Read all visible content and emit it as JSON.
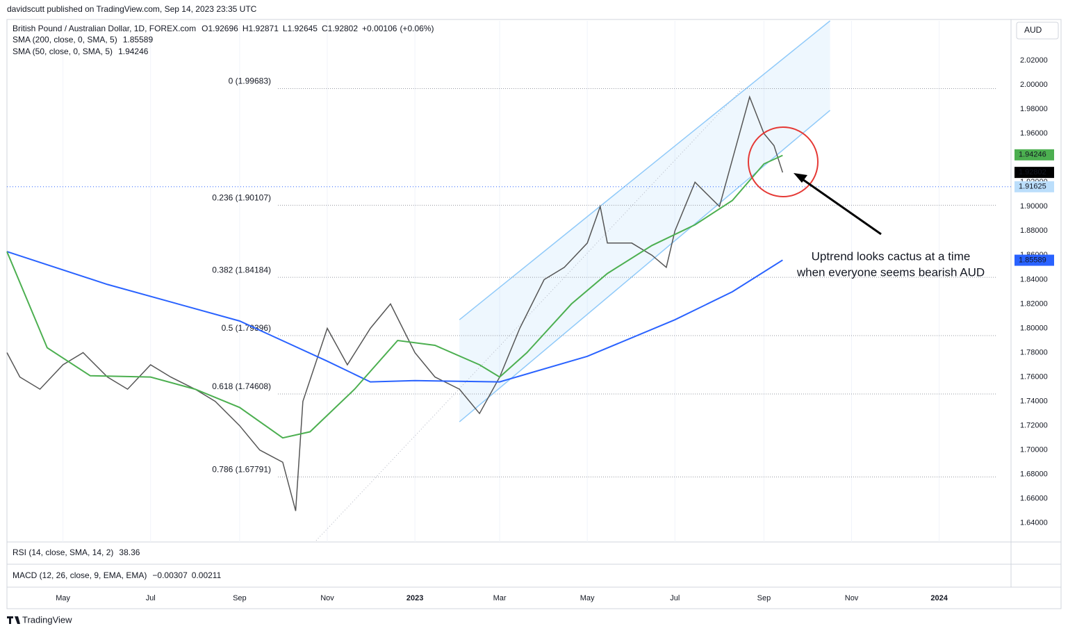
{
  "header": {
    "publisher": "davidscutt published on TradingView.com, Sep 14, 2023 23:35 UTC"
  },
  "chart_data": {
    "type": "line",
    "title": "British Pound / Australian Dollar, 1D, FOREX.com",
    "quote": [
      {
        "label": "O",
        "value": 1.92696
      },
      {
        "label": "H",
        "value": 1.92871
      },
      {
        "label": "L",
        "value": 1.92645
      },
      {
        "label": "C",
        "value": 1.92802
      }
    ],
    "change": {
      "value": 0.00106,
      "label": "+0.00106"
    },
    "change_pct": {
      "value": 0.06,
      "label": "(+0.06%)"
    },
    "currency": "AUD",
    "series": [
      {
        "name": "British Pound / Australian Dollar, 1D, FOREX.com",
        "color": "#555555",
        "x": [
          "2022-03-23",
          "2022-04-01",
          "2022-04-15",
          "2022-05-01",
          "2022-05-15",
          "2022-06-01",
          "2022-06-15",
          "2022-07-01",
          "2022-07-15",
          "2022-08-01",
          "2022-08-15",
          "2022-09-01",
          "2022-09-15",
          "2022-10-01",
          "2022-10-10",
          "2022-10-15",
          "2022-11-01",
          "2022-11-15",
          "2022-12-01",
          "2022-12-15",
          "2023-01-01",
          "2023-01-15",
          "2023-02-01",
          "2023-02-15",
          "2023-03-01",
          "2023-03-15",
          "2023-04-01",
          "2023-04-15",
          "2023-05-01",
          "2023-05-10",
          "2023-05-15",
          "2023-06-01",
          "2023-06-15",
          "2023-06-25",
          "2023-07-01",
          "2023-07-15",
          "2023-08-01",
          "2023-08-15",
          "2023-08-22",
          "2023-09-01",
          "2023-09-08",
          "2023-09-14"
        ],
        "values": [
          1.78,
          1.76,
          1.75,
          1.77,
          1.78,
          1.76,
          1.75,
          1.77,
          1.76,
          1.75,
          1.74,
          1.72,
          1.7,
          1.69,
          1.65,
          1.74,
          1.8,
          1.77,
          1.8,
          1.82,
          1.78,
          1.76,
          1.75,
          1.73,
          1.76,
          1.8,
          1.84,
          1.85,
          1.87,
          1.9,
          1.87,
          1.87,
          1.86,
          1.85,
          1.88,
          1.92,
          1.9,
          1.96,
          1.99,
          1.96,
          1.95,
          1.928
        ]
      },
      {
        "name": "SMA (200, close, 0, SMA, 5)",
        "color": "#2962ff",
        "last_value": 1.85589,
        "x": [
          "2022-03-23",
          "2022-06-01",
          "2022-09-01",
          "2022-11-01",
          "2022-12-01",
          "2023-01-01",
          "2023-03-01",
          "2023-05-01",
          "2023-07-01",
          "2023-08-10",
          "2023-09-14"
        ],
        "values": [
          1.863,
          1.836,
          1.806,
          1.773,
          1.756,
          1.757,
          1.756,
          1.777,
          1.807,
          1.83,
          1.856
        ]
      },
      {
        "name": "SMA (50, close, 0, SMA, 5)",
        "color": "#4caf50",
        "last_value": 1.94246,
        "x": [
          "2022-03-23",
          "2022-04-20",
          "2022-05-20",
          "2022-07-01",
          "2022-08-01",
          "2022-09-01",
          "2022-10-01",
          "2022-10-20",
          "2022-11-20",
          "2022-12-20",
          "2023-01-15",
          "2023-02-15",
          "2023-03-01",
          "2023-03-20",
          "2023-04-20",
          "2023-05-15",
          "2023-06-15",
          "2023-07-15",
          "2023-08-10",
          "2023-09-01",
          "2023-09-14"
        ],
        "values": [
          1.863,
          1.784,
          1.761,
          1.76,
          1.75,
          1.735,
          1.71,
          1.715,
          1.75,
          1.79,
          1.786,
          1.77,
          1.76,
          1.78,
          1.82,
          1.845,
          1.868,
          1.885,
          1.905,
          1.935,
          1.942
        ]
      }
    ],
    "xlim": [
      "2022-03-23",
      "2024-02-20"
    ],
    "xticks": [
      {
        "value": "2022-05-01",
        "label": "May"
      },
      {
        "value": "2022-07-01",
        "label": "Jul"
      },
      {
        "value": "2022-09-01",
        "label": "Sep"
      },
      {
        "value": "2022-11-01",
        "label": "Nov"
      },
      {
        "value": "2023-01-01",
        "label": "2023"
      },
      {
        "value": "2023-03-01",
        "label": "Mar"
      },
      {
        "value": "2023-05-01",
        "label": "May"
      },
      {
        "value": "2023-07-01",
        "label": "Jul"
      },
      {
        "value": "2023-09-01",
        "label": "Sep"
      },
      {
        "value": "2023-11-01",
        "label": "Nov"
      },
      {
        "value": "2024-01-01",
        "label": "2024"
      }
    ],
    "ylim": [
      1.6245,
      2.0525
    ],
    "yticks": [
      {
        "value": 1.64,
        "label": "1.64000"
      },
      {
        "value": 1.66,
        "label": "1.66000"
      },
      {
        "value": 1.68,
        "label": "1.68000"
      },
      {
        "value": 1.7,
        "label": "1.70000"
      },
      {
        "value": 1.72,
        "label": "1.72000"
      },
      {
        "value": 1.74,
        "label": "1.74000"
      },
      {
        "value": 1.76,
        "label": "1.76000"
      },
      {
        "value": 1.78,
        "label": "1.78000"
      },
      {
        "value": 1.8,
        "label": "1.80000"
      },
      {
        "value": 1.82,
        "label": "1.82000"
      },
      {
        "value": 1.84,
        "label": "1.84000"
      },
      {
        "value": 1.86,
        "label": "1.86000"
      },
      {
        "value": 1.88,
        "label": "1.88000"
      },
      {
        "value": 1.9,
        "label": "1.90000"
      },
      {
        "value": 1.92,
        "label": "1.92000"
      },
      {
        "value": 1.94,
        "label": "1.94000"
      },
      {
        "value": 1.96,
        "label": "1.96000"
      },
      {
        "value": 1.98,
        "label": "1.98000"
      },
      {
        "value": 2.0,
        "label": "2.00000"
      },
      {
        "value": 2.02,
        "label": "2.02000"
      }
    ],
    "fib_levels": [
      {
        "value": 1.99683,
        "label": "0 (1.99683)"
      },
      {
        "value": 1.90107,
        "label": "0.236 (1.90107)"
      },
      {
        "value": 1.84184,
        "label": "0.382 (1.84184)"
      },
      {
        "value": 1.79396,
        "label": "0.5 (1.79396)"
      },
      {
        "value": 1.74608,
        "label": "0.618 (1.74608)"
      },
      {
        "value": 1.67791,
        "label": "0.786 (1.67791)"
      }
    ],
    "channel": {
      "x": [
        "2023-02-01",
        "2023-10-17"
      ],
      "upper": [
        1.807,
        2.0525
      ],
      "lower": [
        1.7232,
        1.979
      ],
      "color": "#90caf9"
    },
    "price_line": {
      "value": 1.91625,
      "color": "#2962ff"
    },
    "annotation": [
      "Uptrend looks cactus at a time",
      "when everyone seems bearish AUD"
    ],
    "indicators": [
      {
        "name": "RSI (14, close, SMA, 14, 2)",
        "values": [
          38.36
        ],
        "colors": [
          "#7e57c2"
        ]
      },
      {
        "name": "MACD (12, 26, close, 9, EMA, EMA)",
        "values": [
          {
            "value": -0.00307,
            "label": "−0.00307"
          },
          0.00211
        ],
        "colors": [
          "#f23645",
          "#2962ff"
        ]
      }
    ]
  },
  "footer": {
    "brand": "TradingView"
  }
}
